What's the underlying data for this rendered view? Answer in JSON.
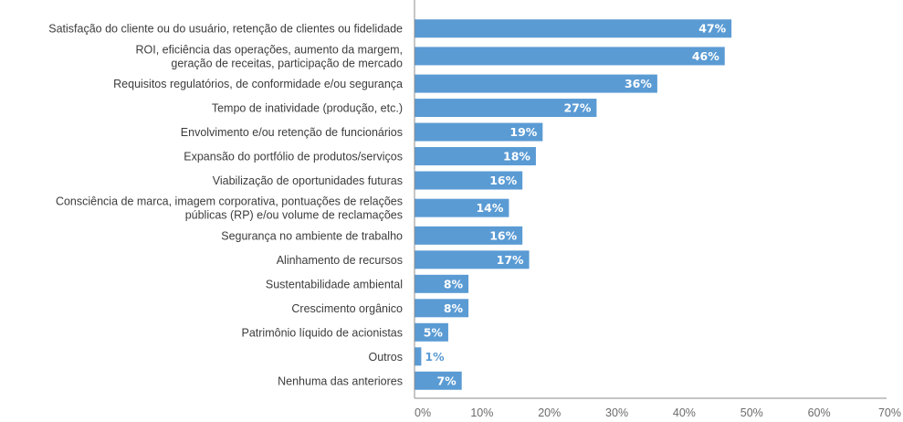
{
  "chart_data": {
    "type": "bar",
    "orientation": "horizontal",
    "categories": [
      [
        "Satisfação do cliente ou do usuário, retenção de clientes ou fidelidade"
      ],
      [
        "ROI, eficiência das operações, aumento da margem,",
        "geração de receitas, participação de mercado"
      ],
      [
        "Requisitos regulatórios, de conformidade e/ou segurança"
      ],
      [
        "Tempo de inatividade (produção, etc.)"
      ],
      [
        "Envolvimento e/ou retenção de funcionários"
      ],
      [
        "Expansão do portfólio de produtos/serviços"
      ],
      [
        "Viabilização de oportunidades futuras"
      ],
      [
        "Consciência de marca, imagem corporativa, pontuações de relações",
        "públicas (RP) e/ou volume de reclamações"
      ],
      [
        "Segurança no ambiente de trabalho"
      ],
      [
        "Alinhamento de recursos"
      ],
      [
        "Sustentabilidade ambiental"
      ],
      [
        "Crescimento orgânico"
      ],
      [
        "Patrimônio líquido de acionistas"
      ],
      [
        "Outros"
      ],
      [
        "Nenhuma das anteriores"
      ]
    ],
    "values": [
      47,
      46,
      36,
      27,
      19,
      18,
      16,
      14,
      16,
      17,
      8,
      8,
      5,
      1,
      7
    ],
    "data_labels": [
      "47%",
      "46%",
      "36%",
      "27%",
      "19%",
      "18%",
      "16%",
      "14%",
      "16%",
      "17%",
      "8%",
      "8%",
      "5%",
      "1%",
      "7%"
    ],
    "xlim": [
      0,
      70
    ],
    "x_ticks": [
      0,
      10,
      20,
      30,
      40,
      50,
      60,
      70
    ],
    "x_tick_labels": [
      "0%",
      "10%",
      "20%",
      "30%",
      "40%",
      "50%",
      "60%",
      "70%"
    ],
    "title": "",
    "xlabel": "",
    "ylabel": "",
    "grid": false,
    "legend": "none",
    "colors": {
      "bar": "#5a9bd4",
      "bar_label_inside": "#ffffff",
      "bar_label_outside": "#5a9bd4",
      "category_text": "#3c3c3c",
      "tick_text": "#6b6b6b",
      "axis": "#8c8c8c"
    }
  }
}
